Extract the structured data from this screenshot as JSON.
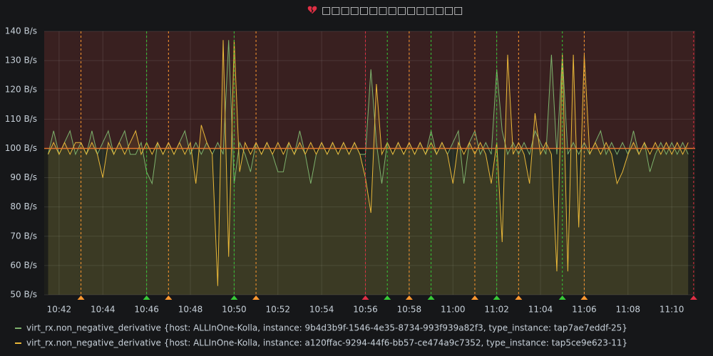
{
  "chart_data": {
    "type": "line",
    "title": "□□□□□□□□□□□□□□□",
    "xlim": [
      641.32,
      671.07
    ],
    "xticks": [
      {
        "value": 642,
        "label": "10:42"
      },
      {
        "value": 644,
        "label": "10:44"
      },
      {
        "value": 646,
        "label": "10:46"
      },
      {
        "value": 648,
        "label": "10:48"
      },
      {
        "value": 650,
        "label": "10:50"
      },
      {
        "value": 652,
        "label": "10:52"
      },
      {
        "value": 654,
        "label": "10:54"
      },
      {
        "value": 656,
        "label": "10:56"
      },
      {
        "value": 658,
        "label": "10:58"
      },
      {
        "value": 660,
        "label": "11:00"
      },
      {
        "value": 662,
        "label": "11:02"
      },
      {
        "value": 664,
        "label": "11:04"
      },
      {
        "value": 666,
        "label": "11:06"
      },
      {
        "value": 668,
        "label": "11:08"
      },
      {
        "value": 670,
        "label": "11:10"
      }
    ],
    "ylim": [
      50,
      140
    ],
    "yticks": [
      {
        "value": 50,
        "label": "50 B/s"
      },
      {
        "value": 60,
        "label": "60 B/s"
      },
      {
        "value": 70,
        "label": "70 B/s"
      },
      {
        "value": 80,
        "label": "80 B/s"
      },
      {
        "value": 90,
        "label": "90 B/s"
      },
      {
        "value": 100,
        "label": "100 B/s"
      },
      {
        "value": 110,
        "label": "110 B/s"
      },
      {
        "value": 120,
        "label": "120 B/s"
      },
      {
        "value": 130,
        "label": "130 B/s"
      },
      {
        "value": 140,
        "label": "140 B/s"
      }
    ],
    "grid": true,
    "threshold": {
      "value": 100,
      "color": "#e0752d",
      "fill_above": "#e02f44"
    },
    "annotations": [
      {
        "x": 643,
        "color": "#ff9830"
      },
      {
        "x": 646,
        "color": "#37c837"
      },
      {
        "x": 647,
        "color": "#ff9830"
      },
      {
        "x": 650,
        "color": "#37c837"
      },
      {
        "x": 651,
        "color": "#ff9830"
      },
      {
        "x": 656,
        "color": "#e02f44"
      },
      {
        "x": 657,
        "color": "#37c837"
      },
      {
        "x": 658,
        "color": "#ff9830"
      },
      {
        "x": 659,
        "color": "#37c837"
      },
      {
        "x": 661,
        "color": "#ff9830"
      },
      {
        "x": 662,
        "color": "#37c837"
      },
      {
        "x": 663,
        "color": "#ff9830"
      },
      {
        "x": 665,
        "color": "#37c837"
      },
      {
        "x": 666,
        "color": "#ff9830"
      },
      {
        "x": 671,
        "color": "#e02f44"
      }
    ],
    "x": [
      641.5,
      641.75,
      642,
      642.25,
      642.5,
      642.75,
      643,
      643.25,
      643.5,
      643.75,
      644,
      644.25,
      644.5,
      644.75,
      645,
      645.25,
      645.5,
      645.75,
      646,
      646.25,
      646.5,
      646.75,
      647,
      647.25,
      647.5,
      647.75,
      648,
      648.25,
      648.5,
      648.75,
      649,
      649.25,
      649.5,
      649.75,
      650,
      650.25,
      650.5,
      650.75,
      651,
      651.25,
      651.5,
      651.75,
      652,
      652.25,
      652.5,
      652.75,
      653,
      653.25,
      653.5,
      653.75,
      654,
      654.25,
      654.5,
      654.75,
      655,
      655.25,
      655.5,
      655.75,
      656,
      656.25,
      656.5,
      656.75,
      657,
      657.25,
      657.5,
      657.75,
      658,
      658.25,
      658.5,
      658.75,
      659,
      659.25,
      659.5,
      659.75,
      660,
      660.25,
      660.5,
      660.75,
      661,
      661.25,
      661.5,
      661.75,
      662,
      662.25,
      662.5,
      662.75,
      663,
      663.25,
      663.5,
      663.75,
      664,
      664.25,
      664.5,
      664.75,
      665,
      665.25,
      665.5,
      665.75,
      666,
      666.25,
      666.5,
      666.75,
      667,
      667.25,
      667.5,
      667.75,
      668,
      668.25,
      668.5,
      668.75,
      669,
      669.25,
      669.5,
      669.75,
      670,
      670.25,
      670.5,
      670.75
    ],
    "series": [
      {
        "name": "virt_rx.non_negative_derivative {host: ALLInOne-Kolla, instance: 9b4d3b9f-1546-4e35-8734-993f939a82f3, type_instance: tap7ae7eddf-25}",
        "color": "#7eb26d",
        "values": [
          98,
          106,
          98,
          102,
          106,
          98,
          102,
          98,
          106,
          98,
          102,
          106,
          98,
          102,
          106,
          98,
          98,
          102,
          92,
          88,
          102,
          98,
          102,
          98,
          102,
          106,
          98,
          102,
          98,
          102,
          98,
          102,
          98,
          137,
          88,
          102,
          98,
          92,
          102,
          98,
          102,
          98,
          92,
          92,
          102,
          98,
          106,
          98,
          88,
          98,
          102,
          98,
          102,
          98,
          102,
          98,
          102,
          98,
          98,
          127,
          102,
          88,
          102,
          98,
          102,
          98,
          102,
          98,
          102,
          98,
          106,
          98,
          102,
          98,
          102,
          106,
          88,
          102,
          106,
          98,
          102,
          98,
          127,
          106,
          98,
          102,
          98,
          102,
          98,
          106,
          102,
          98,
          132,
          98,
          132,
          98,
          102,
          98,
          102,
          98,
          102,
          106,
          98,
          102,
          98,
          102,
          98,
          106,
          98,
          102,
          92,
          98,
          102,
          98,
          102,
          98,
          102,
          98
        ]
      },
      {
        "name": "virt_rx.non_negative_derivative {host: ALLInOne-Kolla, instance: a120ffac-9294-44f6-bb57-ce474a9c7352, type_instance: tap5ce9e623-11}",
        "color": "#eab839",
        "values": [
          98,
          102,
          98,
          102,
          98,
          102,
          102,
          98,
          102,
          98,
          90,
          102,
          98,
          102,
          98,
          102,
          106,
          98,
          102,
          98,
          102,
          98,
          102,
          98,
          102,
          98,
          102,
          88,
          108,
          102,
          98,
          53,
          137,
          63,
          137,
          92,
          102,
          98,
          102,
          98,
          102,
          98,
          102,
          98,
          102,
          98,
          102,
          98,
          102,
          98,
          102,
          98,
          102,
          98,
          102,
          98,
          102,
          98,
          90,
          78,
          122,
          98,
          102,
          98,
          102,
          98,
          102,
          98,
          102,
          98,
          102,
          98,
          102,
          98,
          88,
          102,
          98,
          102,
          98,
          102,
          98,
          88,
          102,
          68,
          132,
          98,
          102,
          98,
          88,
          112,
          98,
          102,
          98,
          58,
          132,
          58,
          132,
          73,
          132,
          98,
          102,
          98,
          102,
          98,
          88,
          92,
          98,
          102,
          98,
          102,
          98,
          102,
          98,
          102,
          98,
          102,
          98,
          102
        ]
      }
    ]
  }
}
